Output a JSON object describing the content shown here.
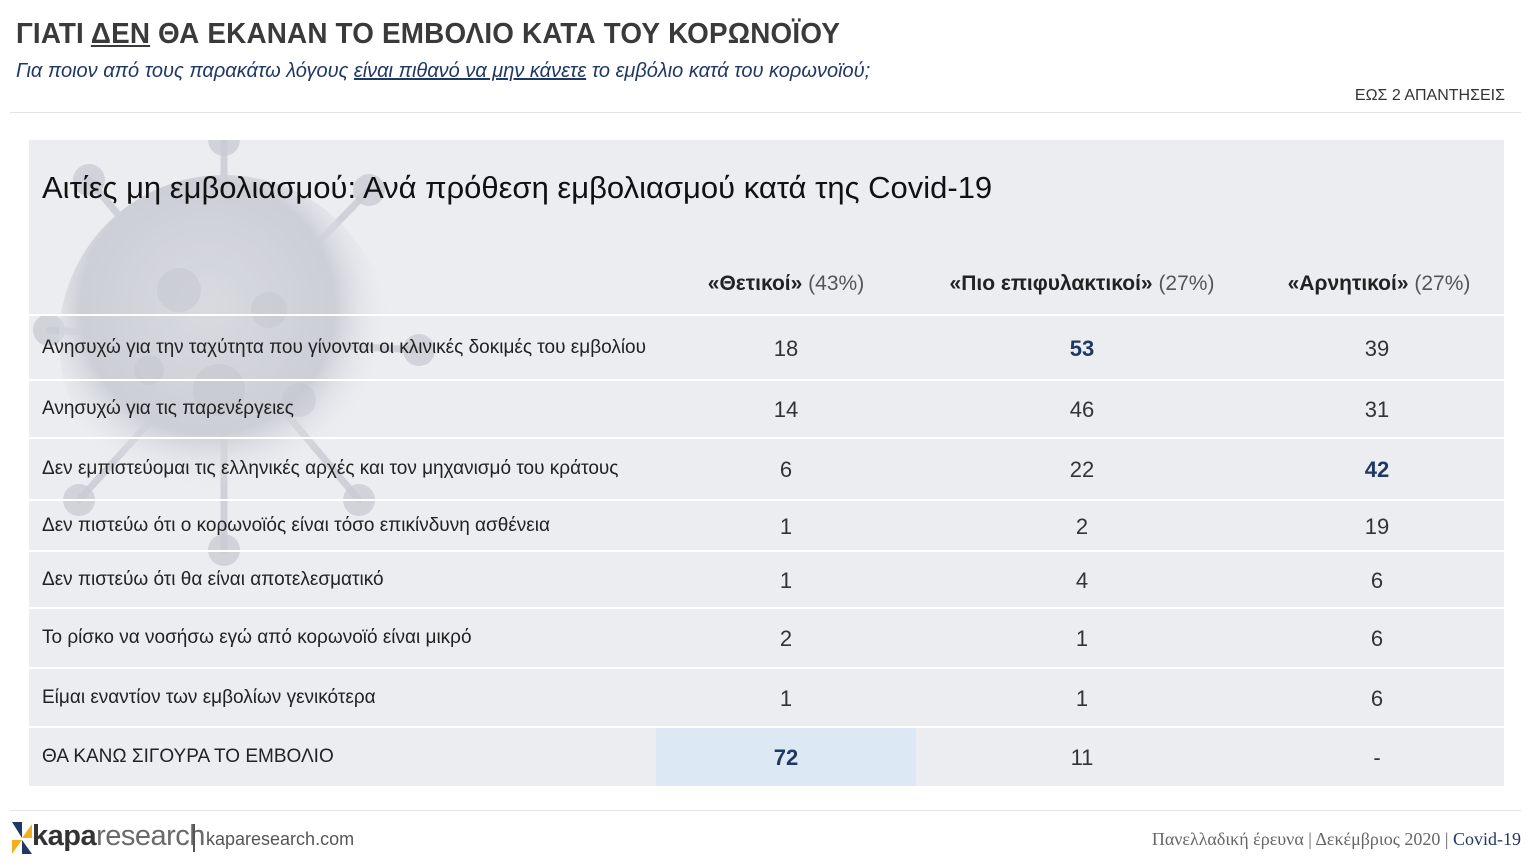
{
  "header": {
    "title_prefix": "ΓΙΑΤΙ ",
    "title_emph": "ΔΕΝ",
    "title_suffix": " ΘΑ ΕΚΑΝΑΝ ΤΟ ΕΜΒΟΛΙΟ ΚΑΤΑ ΤΟΥ ΚΟΡΩΝΟΪΟΥ",
    "subtitle_prefix": "Για ποιον από τους παρακάτω λόγους ",
    "subtitle_emph": "είναι πιθανό να μην κάνετε",
    "subtitle_suffix": " το εμβόλιο κατά του κορωνοϊού;",
    "note": "ΕΩΣ 2 ΑΠΑΝΤΗΣΕΙΣ"
  },
  "table": {
    "title": "Αιτίες μη εμβολιασμού: Ανά πρόθεση εμβολιασμού κατά της Covid-19",
    "columns": [
      {
        "name": "«Θετικοί»",
        "pct": "(43%)"
      },
      {
        "name": "«Πιο επιφυλακτικοί»",
        "pct": "(27%)"
      },
      {
        "name": "«Αρνητικοί»",
        "pct": "(27%)"
      }
    ],
    "rows": [
      {
        "label": "Ανησυχώ για την ταχύτητα που γίνονται οι κλινικές δοκιμές του εμβολίου",
        "values": [
          "18",
          "53",
          "39"
        ],
        "highlight": 1
      },
      {
        "label": "Ανησυχώ για τις παρενέργειες",
        "values": [
          "14",
          "46",
          "31"
        ],
        "highlight": -1
      },
      {
        "label": "Δεν εμπιστεύομαι τις ελληνικές αρχές και τον μηχανισμό του κράτους",
        "values": [
          "6",
          "22",
          "42"
        ],
        "highlight": 2
      },
      {
        "label": "Δεν πιστεύω ότι ο κορωνοϊός είναι τόσο επικίνδυνη ασθένεια",
        "values": [
          "1",
          "2",
          "19"
        ],
        "highlight": -1
      },
      {
        "label": "Δεν πιστεύω ότι θα είναι αποτελεσματικό",
        "values": [
          "1",
          "4",
          "6"
        ],
        "highlight": -1
      },
      {
        "label": "Το ρίσκο να νοσήσω εγώ από κορωνοϊό είναι μικρό",
        "values": [
          "2",
          "1",
          "6"
        ],
        "highlight": -1
      },
      {
        "label": "Είμαι εναντίον των εμβολίων γενικότερα",
        "values": [
          "1",
          "1",
          "6"
        ],
        "highlight": -1
      },
      {
        "label": "ΘΑ ΚΑΝΩ ΣΙΓΟΥΡΑ ΤΟ ΕΜΒΟΛΙΟ",
        "values": [
          "72",
          "11",
          "-"
        ],
        "highlight": 0
      }
    ]
  },
  "footer": {
    "brand_a": "kapa",
    "brand_b": "research",
    "site": "kaparesearch.com",
    "survey": "Πανελλαδική έρευνα | Δεκέμβριος 2020 | ",
    "tag": "Covid-19"
  },
  "colors": {
    "accent": "#1f3864",
    "panel_bg": "#ebedf1",
    "highlight_bg": "#dde8f5",
    "logo_blue": "#1f3864",
    "logo_gold": "#f2b01e"
  },
  "icons": {
    "background": "virus-illustration",
    "logo": "kapa-logo-icon"
  }
}
